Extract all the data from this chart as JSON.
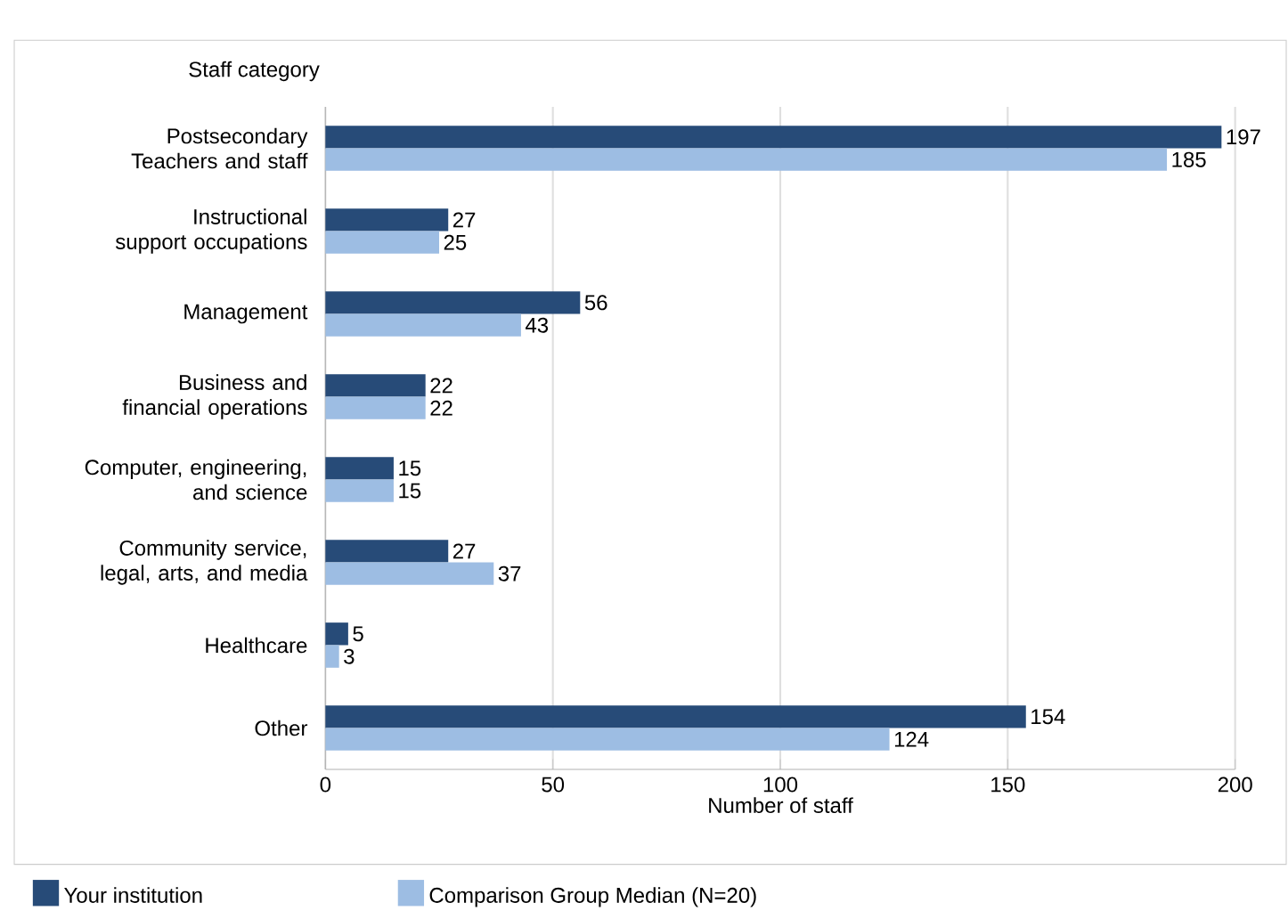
{
  "chart_data": {
    "type": "bar",
    "orientation": "horizontal",
    "ylabel": "Staff category",
    "xlabel": "Number of staff",
    "categories": [
      "Postsecondary Teachers and staff",
      "Instructional support occupations",
      "Management",
      "Business and financial operations",
      "Computer, engineering, and science",
      "Community service, legal, arts, and media",
      "Healthcare",
      "Other"
    ],
    "series": [
      {
        "name": "Your institution",
        "color": "#274b78",
        "values": [
          197,
          27,
          56,
          22,
          15,
          27,
          5,
          154
        ]
      },
      {
        "name": "Comparison Group Median (N=20)",
        "color": "#9dbde3",
        "values": [
          185,
          25,
          43,
          22,
          15,
          37,
          3,
          124
        ]
      }
    ],
    "xlim": [
      0,
      200
    ],
    "xticks": [
      0,
      50,
      100,
      150,
      200
    ],
    "grid": "x",
    "data_labels": true,
    "legend": "bottom"
  }
}
